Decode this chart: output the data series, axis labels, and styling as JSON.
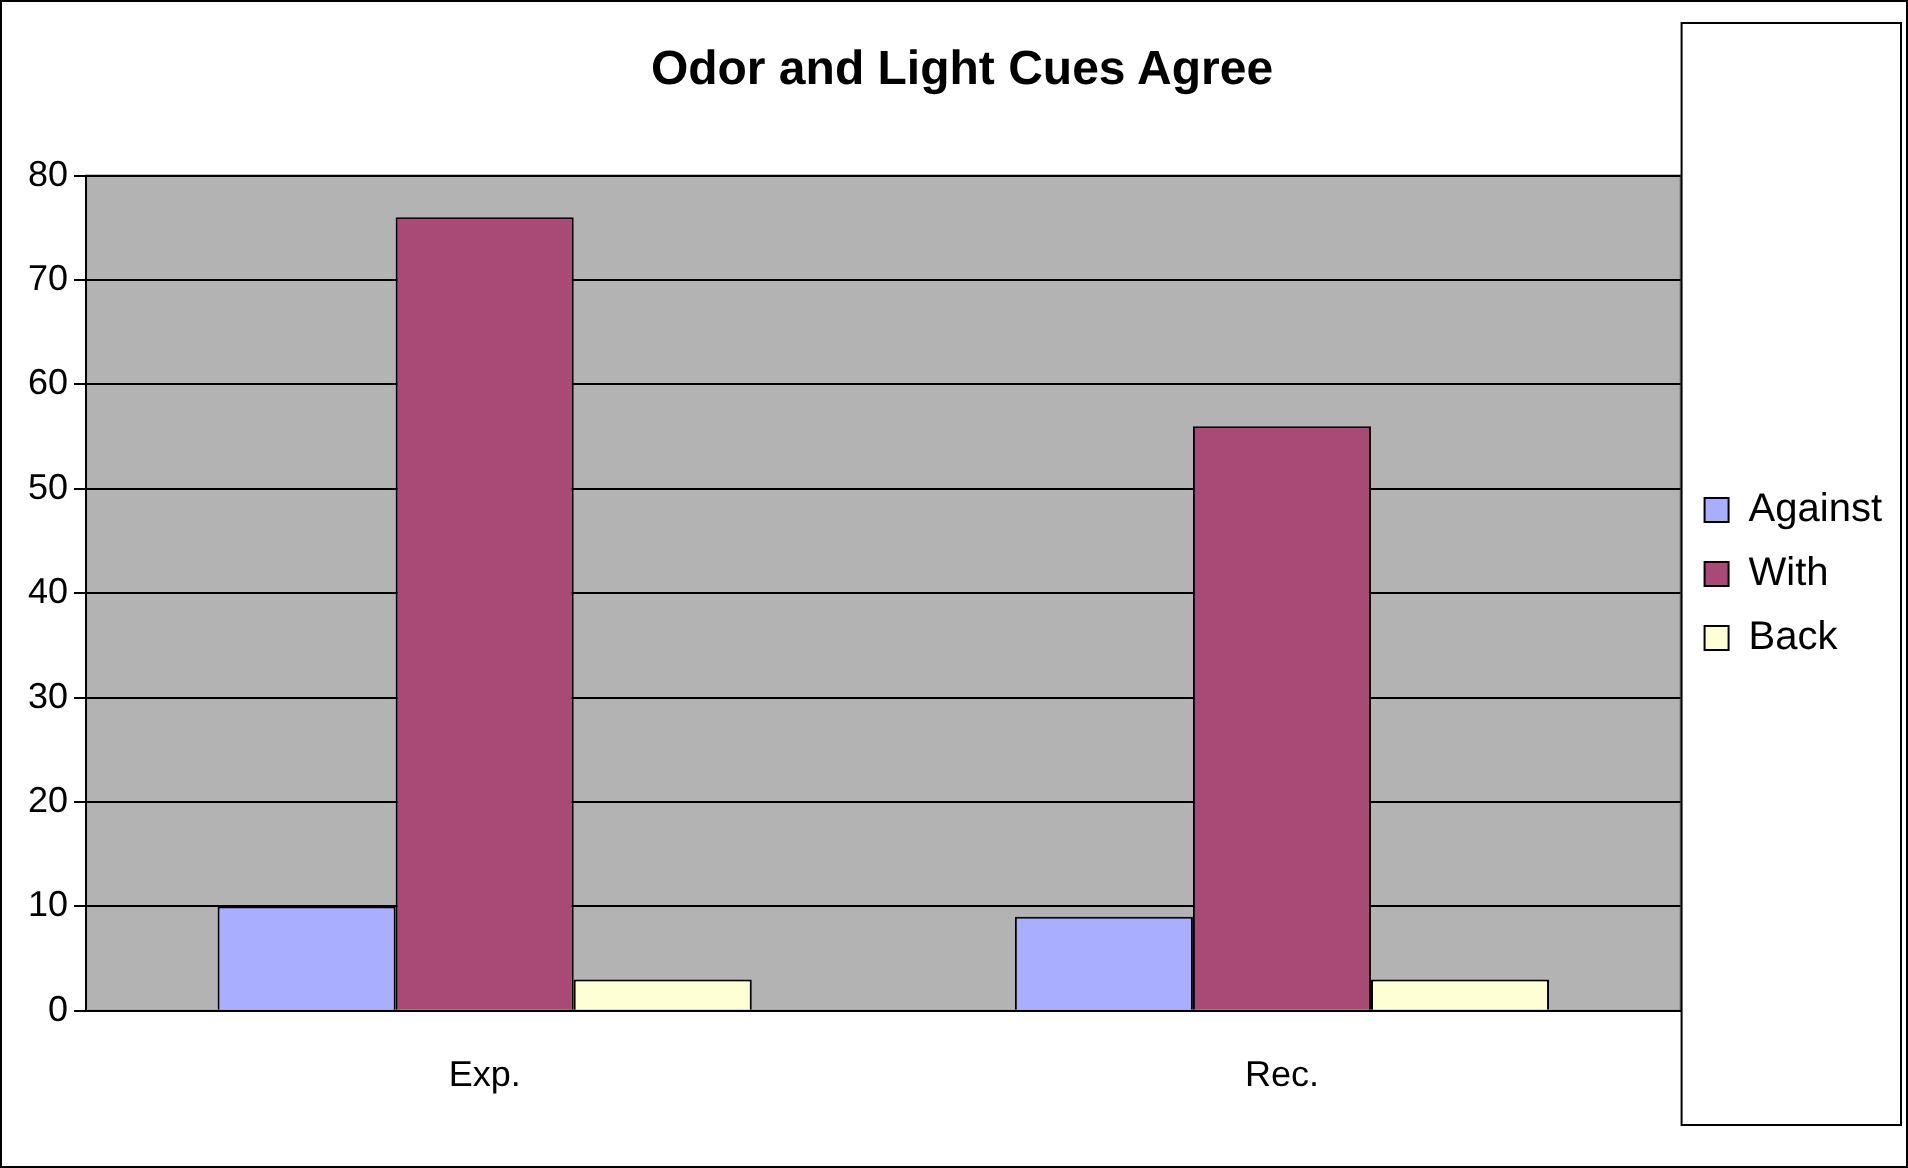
{
  "chart_data": {
    "type": "bar",
    "title": "Odor and Light Cues Agree",
    "categories": [
      "Exp.",
      "Rec."
    ],
    "series": [
      {
        "name": "Against",
        "color": "#a9aeff",
        "values": [
          10,
          9
        ]
      },
      {
        "name": "With",
        "color": "#a94975",
        "values": [
          76,
          56
        ]
      },
      {
        "name": "Back",
        "color": "#ffffd6",
        "values": [
          3,
          3
        ]
      }
    ],
    "ylim": [
      0,
      80
    ],
    "yticks": [
      0,
      10,
      20,
      30,
      40,
      50,
      60,
      70,
      80
    ],
    "grid": "y",
    "legend": "right"
  }
}
